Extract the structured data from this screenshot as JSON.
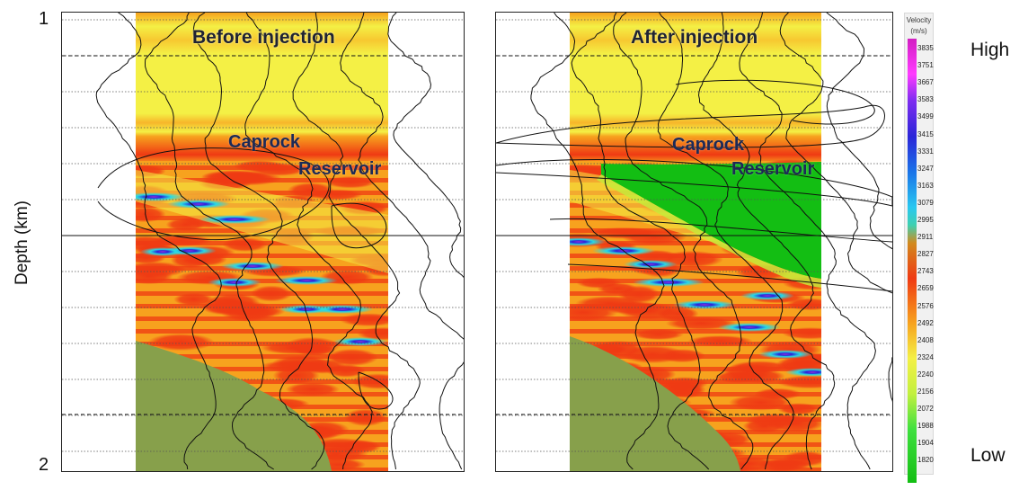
{
  "axis": {
    "ylabel": "Depth (km)",
    "ytick_top": "1",
    "ytick_bottom": "2"
  },
  "panels": [
    {
      "title": "Before injection",
      "label_caprock": "Caprock",
      "label_reservoir": "Reservoir"
    },
    {
      "title": "After injection",
      "label_caprock": "Caprock",
      "label_reservoir": "Reservoir"
    }
  ],
  "colorbar": {
    "title": "Velocity",
    "unit": "(m/s)",
    "ticks": [
      "3835",
      "3751",
      "3667",
      "3583",
      "3499",
      "3415",
      "3331",
      "3247",
      "3163",
      "3079",
      "2995",
      "2911",
      "2827",
      "2743",
      "2659",
      "2576",
      "2492",
      "2408",
      "2324",
      "2240",
      "2156",
      "2072",
      "1988",
      "1904",
      "1820"
    ],
    "high_label": "High",
    "low_label": "Low"
  },
  "chart_data": {
    "type": "heatmap",
    "ylabel": "Depth (km)",
    "ylim": [
      1,
      2
    ],
    "colorbar_range": [
      1820,
      3835
    ],
    "colorbar_unit": "m/s"
  },
  "colors": {
    "yellow": "#f4f045",
    "orange": "#f7a21e",
    "red": "#ef3a13",
    "olive": "#87a04b",
    "green": "#13be13",
    "blue": "#2b25d8",
    "cyan": "#28d9e4",
    "purple": "#9b32dc"
  }
}
